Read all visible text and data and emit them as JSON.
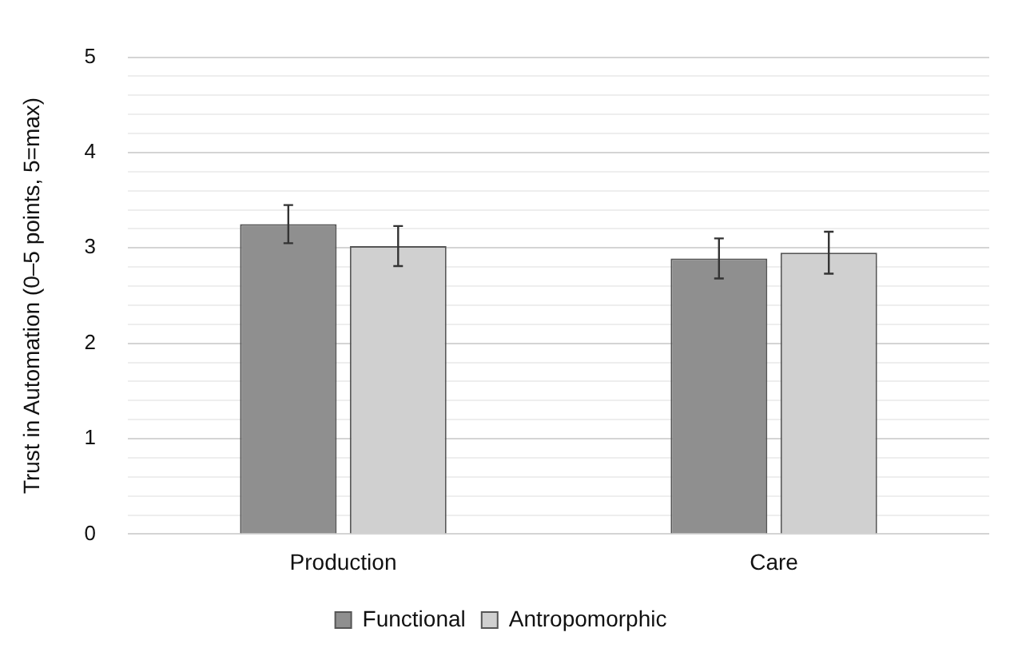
{
  "chart_data": {
    "type": "bar",
    "ylabel": "Trust in Automation (0–5 points, 5=max)",
    "categories": [
      "Production",
      "Care"
    ],
    "series": [
      {
        "name": "Functional",
        "color": "#8f8f8f",
        "values": [
          3.25,
          2.89
        ],
        "errors": [
          0.2,
          0.21
        ]
      },
      {
        "name": "Antropomorphic",
        "color": "#d0d0d0",
        "values": [
          3.02,
          2.95
        ],
        "errors": [
          0.21,
          0.22
        ]
      }
    ],
    "ylim": [
      0,
      5
    ],
    "yticks": [
      0,
      {
        "value": 0.2,
        "label": null
      },
      {
        "value": 0.4,
        "label": null
      },
      {
        "value": 0.6,
        "label": null
      },
      {
        "value": 0.8,
        "label": null
      },
      1,
      {
        "value": 1.2,
        "label": null
      },
      {
        "value": 1.4,
        "label": null
      },
      {
        "value": 1.6,
        "label": null
      },
      {
        "value": 1.8,
        "label": null
      },
      2,
      {
        "value": 2.2,
        "label": null
      },
      {
        "value": 2.4,
        "label": null
      },
      {
        "value": 2.6,
        "label": null
      },
      {
        "value": 2.8,
        "label": null
      },
      3,
      {
        "value": 3.2,
        "label": null
      },
      {
        "value": 3.4,
        "label": null
      },
      {
        "value": 3.6,
        "label": null
      },
      {
        "value": 3.8,
        "label": null
      },
      4,
      {
        "value": 4.2,
        "label": null
      },
      {
        "value": 4.4,
        "label": null
      },
      {
        "value": 4.6,
        "label": null
      },
      {
        "value": 4.8,
        "label": null
      },
      5
    ],
    "grid": "y",
    "legend": "bottom"
  }
}
